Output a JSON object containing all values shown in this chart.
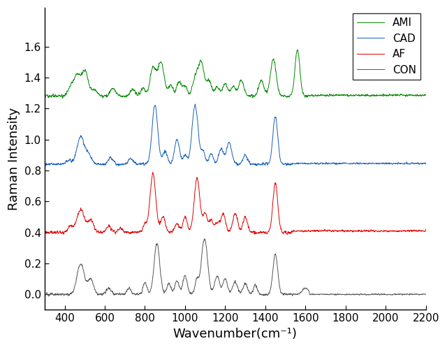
{
  "title": "",
  "xlabel": "Wavenumber(cm⁻¹)",
  "ylabel": "Raman Intensity",
  "xlim": [
    300,
    2200
  ],
  "ylim": [
    -0.1,
    1.85
  ],
  "yticks": [
    0.0,
    0.2,
    0.4,
    0.6,
    0.8,
    1.0,
    1.2,
    1.4,
    1.6
  ],
  "xticks": [
    400,
    600,
    800,
    1000,
    1200,
    1400,
    1600,
    1800,
    2000,
    2200
  ],
  "colors": {
    "AMI": "#008800",
    "CAD": "#1560bd",
    "AF": "#dd0000",
    "CON": "#555555"
  },
  "figsize": [
    6.4,
    4.98
  ],
  "dpi": 100,
  "xlabel_fontsize": 13,
  "ylabel_fontsize": 13,
  "tick_fontsize": 11,
  "legend_fontsize": 11
}
